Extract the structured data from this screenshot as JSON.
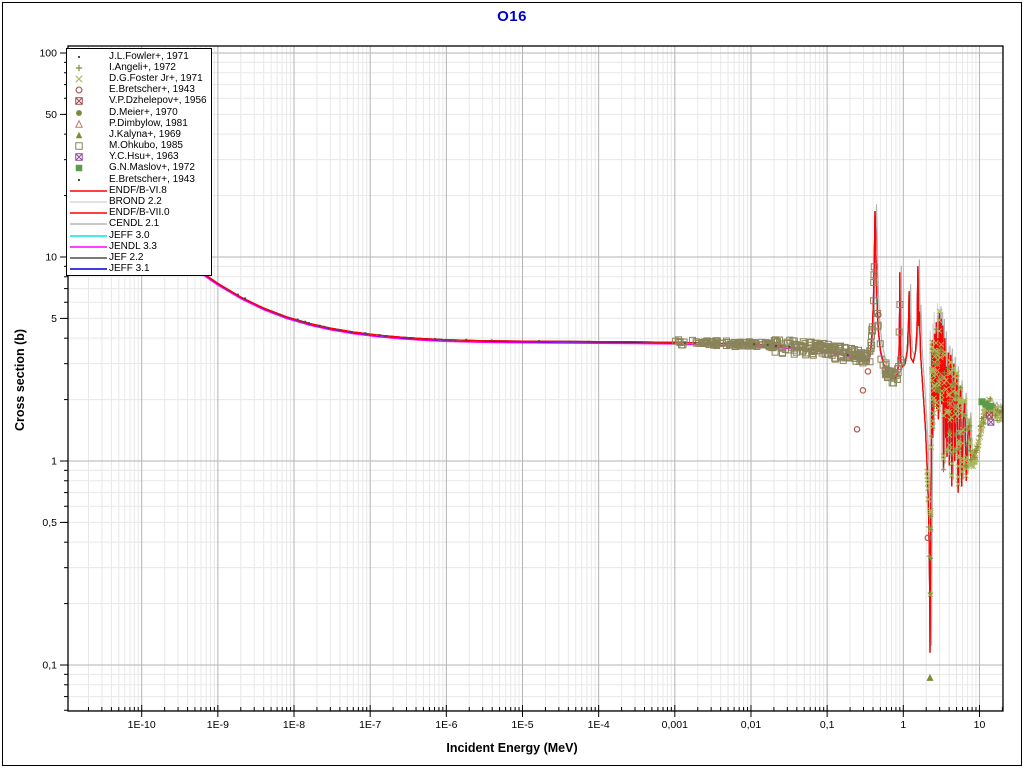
{
  "title": "O16",
  "title_color": "#0000cd",
  "axes": {
    "x_label": "Incident Energy (MeV)",
    "y_label": "Cross section (b)",
    "x_ticks": [
      {
        "value": 1e-10,
        "label": "1E-10"
      },
      {
        "value": 1e-09,
        "label": "1E-9"
      },
      {
        "value": 1e-08,
        "label": "1E-8"
      },
      {
        "value": 1e-07,
        "label": "1E-7"
      },
      {
        "value": 1e-06,
        "label": "1E-6"
      },
      {
        "value": 1e-05,
        "label": "1E-5"
      },
      {
        "value": 0.0001,
        "label": "1E-4"
      },
      {
        "value": 0.001,
        "label": "0,001"
      },
      {
        "value": 0.01,
        "label": "0,01"
      },
      {
        "value": 0.1,
        "label": "0,1"
      },
      {
        "value": 1,
        "label": "1"
      },
      {
        "value": 10,
        "label": "10"
      }
    ],
    "y_ticks": [
      {
        "value": 100,
        "label": "100"
      },
      {
        "value": 50,
        "label": "50"
      },
      {
        "value": 10,
        "label": "10"
      },
      {
        "value": 5,
        "label": "5"
      },
      {
        "value": 1,
        "label": "1"
      },
      {
        "value": 0.5,
        "label": "0,5"
      },
      {
        "value": 0.1,
        "label": "0,1"
      }
    ]
  },
  "legend": {
    "entries": [
      {
        "label": "J.L.Fowler+, 1971",
        "type": "marker",
        "marker": "dot",
        "color": "#5a4a3a"
      },
      {
        "label": "I.Angeli+, 1972",
        "type": "marker",
        "marker": "plus",
        "color": "#8a8a3d"
      },
      {
        "label": "D.G.Foster Jr+, 1971",
        "type": "marker",
        "marker": "x",
        "color": "#a8b85c"
      },
      {
        "label": "E.Bretscher+, 1943",
        "type": "marker",
        "marker": "open-circle",
        "color": "#b35950"
      },
      {
        "label": "V.P.Dzhelepov+, 1956",
        "type": "marker",
        "marker": "boxed-x",
        "color": "#9c4a4a"
      },
      {
        "label": "D.Meier+, 1970",
        "type": "marker",
        "marker": "filled-circle",
        "color": "#7d8a3d"
      },
      {
        "label": "P.Dimbylow, 1981",
        "type": "marker",
        "marker": "open-triangle",
        "color": "#c07a6b"
      },
      {
        "label": "J.Kalyna+, 1969",
        "type": "marker",
        "marker": "filled-triangle",
        "color": "#7d8a2d"
      },
      {
        "label": "M.Ohkubo, 1985",
        "type": "marker",
        "marker": "open-square",
        "color": "#8a845a"
      },
      {
        "label": "Y.C.Hsu+, 1963",
        "type": "marker",
        "marker": "boxed-x",
        "color": "#8a4a9c"
      },
      {
        "label": "G.N.Maslov+, 1972",
        "type": "marker",
        "marker": "filled-square",
        "color": "#5a9c4a"
      },
      {
        "label": "E.Bretscher+, 1943",
        "type": "marker",
        "marker": "dot",
        "color": "#5a4a3a"
      },
      {
        "label": "ENDF/B-VI.8",
        "type": "line",
        "color": "#ff0000"
      },
      {
        "label": "BROND 2.2",
        "type": "line",
        "color": "#d9d9d9"
      },
      {
        "label": "ENDF/B-VII.0",
        "type": "line",
        "color": "#ff0000"
      },
      {
        "label": "CENDL 2.1",
        "type": "line",
        "color": "#b5b5b5"
      },
      {
        "label": "JEFF 3.0",
        "type": "line",
        "color": "#00e5e5"
      },
      {
        "label": "JENDL 3.3",
        "type": "line",
        "color": "#ff00ff"
      },
      {
        "label": "JEF 2.2",
        "type": "line",
        "color": "#4d4d4d"
      },
      {
        "label": "JEFF 3.1",
        "type": "line",
        "color": "#0000cc"
      }
    ]
  },
  "chart_data": {
    "type": "line",
    "title": "O16",
    "xlabel": "Incident Energy (MeV)",
    "ylabel": "Cross section (b)",
    "xscale": "log",
    "yscale": "log",
    "xlim": [
      1.08e-11,
      20.4
    ],
    "ylim": [
      0.059,
      108
    ],
    "grid": true,
    "legend_position": "top-left",
    "base_curve": [
      [
        1.1e-11,
        38
      ],
      [
        2e-11,
        29.3
      ],
      [
        4e-11,
        21.8
      ],
      [
        8e-11,
        16.6
      ],
      [
        1.6e-10,
        12.8
      ],
      [
        3e-10,
        10.4
      ],
      [
        6e-10,
        8.47
      ],
      [
        1e-09,
        7.42
      ],
      [
        2e-09,
        6.37
      ],
      [
        4e-09,
        5.62
      ],
      [
        8e-09,
        5.09
      ],
      [
        1.6e-08,
        4.72
      ],
      [
        3e-08,
        4.48
      ],
      [
        6e-08,
        4.29
      ],
      [
        1.2e-07,
        4.15
      ],
      [
        2.5e-07,
        4.05
      ],
      [
        5e-07,
        3.98
      ],
      [
        1e-06,
        3.93
      ],
      [
        3e-06,
        3.89
      ],
      [
        1e-05,
        3.87
      ],
      [
        3e-05,
        3.86
      ],
      [
        0.0001,
        3.85
      ],
      [
        0.0003,
        3.84
      ],
      [
        0.001,
        3.82
      ],
      [
        0.003,
        3.78
      ],
      [
        0.01,
        3.73
      ],
      [
        0.02,
        3.68
      ],
      [
        0.04,
        3.6
      ],
      [
        0.07,
        3.53
      ],
      [
        0.1,
        3.47
      ],
      [
        0.15,
        3.38
      ],
      [
        0.2,
        3.3
      ],
      [
        0.25,
        3.24
      ],
      [
        0.3,
        3.19
      ],
      [
        0.34,
        3.15
      ],
      [
        0.37,
        3.35
      ],
      [
        0.39,
        4.3
      ],
      [
        0.405,
        6
      ],
      [
        0.418,
        10.5
      ],
      [
        0.425,
        16.8
      ],
      [
        0.432,
        13.5
      ],
      [
        0.442,
        8
      ],
      [
        0.455,
        5.5
      ],
      [
        0.47,
        4.4
      ],
      [
        0.5,
        3.5
      ],
      [
        0.55,
        3
      ],
      [
        0.62,
        2.7
      ],
      [
        0.7,
        2.55
      ],
      [
        0.78,
        2.55
      ],
      [
        0.84,
        2.7
      ],
      [
        0.875,
        3.2
      ],
      [
        0.895,
        5.5
      ],
      [
        0.9,
        8.4
      ],
      [
        0.908,
        4.5
      ],
      [
        0.925,
        3.1
      ],
      [
        0.98,
        2.9
      ],
      [
        1.06,
        3
      ],
      [
        1.13,
        3.5
      ],
      [
        1.175,
        5
      ],
      [
        1.19,
        6.8
      ],
      [
        1.21,
        4.6
      ],
      [
        1.26,
        3.2
      ],
      [
        1.35,
        3.05
      ],
      [
        1.44,
        3.4
      ],
      [
        1.51,
        4.3
      ],
      [
        1.555,
        9
      ],
      [
        1.585,
        4.6
      ],
      [
        1.625,
        5.4
      ],
      [
        1.68,
        3.4
      ],
      [
        1.75,
        2.7
      ],
      [
        1.85,
        2
      ],
      [
        1.95,
        1.45
      ],
      [
        2.04,
        1
      ],
      [
        2.12,
        0.66
      ],
      [
        2.18,
        0.4
      ],
      [
        2.22,
        0.22
      ],
      [
        2.243,
        0.115
      ],
      [
        2.265,
        0.22
      ],
      [
        2.29,
        0.45
      ],
      [
        2.32,
        0.9
      ],
      [
        2.35,
        1.8
      ],
      [
        2.378,
        3.3
      ],
      [
        2.398,
        3.9
      ],
      [
        2.42,
        2.2
      ],
      [
        2.44,
        1.3
      ],
      [
        2.47,
        2.3
      ],
      [
        2.5,
        3.4
      ],
      [
        2.525,
        1.8
      ],
      [
        2.56,
        2.7
      ],
      [
        2.6,
        4.2
      ],
      [
        2.63,
        2
      ],
      [
        2.67,
        3.1
      ],
      [
        2.71,
        4.8
      ],
      [
        2.75,
        1.8
      ],
      [
        2.8,
        2.7
      ],
      [
        2.85,
        4
      ],
      [
        2.89,
        1.6
      ],
      [
        2.94,
        2.9
      ],
      [
        2.99,
        5.3
      ],
      [
        3.03,
        2.2
      ],
      [
        3.09,
        3.4
      ],
      [
        3.14,
        5
      ],
      [
        3.19,
        1.9
      ],
      [
        3.25,
        3.1
      ],
      [
        3.31,
        4.6
      ],
      [
        3.37,
        0.9
      ],
      [
        3.44,
        2.4
      ],
      [
        3.52,
        4
      ],
      [
        3.59,
        1.3
      ],
      [
        3.67,
        2.9
      ],
      [
        3.75,
        1.05
      ],
      [
        3.84,
        2.2
      ],
      [
        3.92,
        3.4
      ],
      [
        4.02,
        0.95
      ],
      [
        4.12,
        2.5
      ],
      [
        4.22,
        3.3
      ],
      [
        4.33,
        0.75
      ],
      [
        4.46,
        2.1
      ],
      [
        4.6,
        3
      ],
      [
        4.75,
        1
      ],
      [
        4.9,
        1.9
      ],
      [
        5.05,
        2.7
      ],
      [
        5.25,
        0.7
      ],
      [
        5.45,
        1.7
      ],
      [
        5.65,
        2.3
      ],
      [
        5.85,
        0.75
      ],
      [
        6.1,
        1.5
      ],
      [
        6.4,
        2
      ],
      [
        6.7,
        0.8
      ],
      [
        7,
        1.3
      ],
      [
        7.35,
        1.6
      ],
      [
        7.7,
        1
      ],
      [
        8.1,
        0.98
      ],
      [
        8.6,
        1.05
      ],
      [
        9.2,
        1.1
      ],
      [
        9.8,
        1.25
      ],
      [
        10.5,
        1.45
      ],
      [
        11.3,
        1.65
      ],
      [
        12.2,
        1.8
      ],
      [
        13.2,
        1.9
      ],
      [
        14.2,
        1.83
      ],
      [
        15.2,
        1.72
      ],
      [
        16.2,
        1.8
      ],
      [
        17.2,
        1.68
      ],
      [
        18.2,
        1.76
      ],
      [
        19.2,
        1.62
      ],
      [
        20.3,
        1.78
      ]
    ],
    "evaluations": [
      {
        "name": "BROND 2.2",
        "color": "#d9d9d9",
        "dx": -2,
        "sigma_scale": 1.12,
        "e_min": 2.3,
        "e_max": 8
      },
      {
        "name": "CENDL 2.1",
        "color": "#b5b5b5",
        "dx": 1.5,
        "sigma_scale": 1.08,
        "e_min": 0.3
      },
      {
        "name": "JEF 2.2",
        "color": "#4d4d4d",
        "dx": 0,
        "sigma_scale": 1.0
      },
      {
        "name": "JEFF 3.0",
        "color": "#00e5e5",
        "dx": 0,
        "sigma_scale": 1.0
      },
      {
        "name": "JEFF 3.1",
        "color": "#0000cc",
        "dx": 0,
        "sigma_scale": 0.985,
        "e_max": 0.0013
      },
      {
        "name": "JENDL 3.3",
        "color": "#ff00ff",
        "dx": 0,
        "sigma_scale": 0.98,
        "e_max": 0.95
      },
      {
        "name": "ENDF/B-VI.8",
        "color": "#ff0000",
        "dx": 0,
        "sigma_scale": 1.0
      },
      {
        "name": "ENDF/B-VII.0",
        "color": "#ff0000",
        "dx": 0,
        "sigma_scale": 1.0
      }
    ],
    "experiments": [
      {
        "name": "M.Ohkubo, 1985",
        "marker": "open-square",
        "color": "#8a845a",
        "size": 6,
        "generate": {
          "e_min": 0.001,
          "e_max": 0.95,
          "count": 300,
          "jitter_lo": 0.013,
          "jitter_hi": 0.035,
          "bias": 0.75,
          "seed": 7
        }
      },
      {
        "name": "D.G.Foster Jr+, 1971",
        "marker": "x",
        "color": "#a8b85c",
        "size": 5,
        "generate": {
          "e_min": 2.05,
          "e_max": 20.3,
          "count": 240,
          "jitter_lo": 0.03,
          "jitter_hi": 0.03,
          "bias": 1,
          "seed": 11
        }
      },
      {
        "name": "I.Angeli+, 1972",
        "marker": "plus",
        "color": "#8a8a3d",
        "size": 5,
        "generate": {
          "e_min": 2.1,
          "e_max": 20.3,
          "count": 70,
          "jitter_lo": 0.04,
          "jitter_hi": 0.04,
          "bias": 1,
          "seed": 13
        }
      },
      {
        "name": "J.L.Fowler+, 1971",
        "marker": "dot",
        "color": "#5a4a3a",
        "size": 2,
        "generate": {
          "e_min": 6e-10,
          "e_max": 0.0002,
          "count": 26,
          "jitter_lo": 0.004,
          "jitter_hi": 0.004,
          "bias": 1,
          "seed": 17
        }
      },
      {
        "name": "E.Bretscher+, 1943",
        "marker": "dot",
        "color": "#5a4a3a",
        "size": 2,
        "generate": {
          "e_min": 0.001,
          "e_max": 0.2,
          "count": 8,
          "jitter_lo": 0.003,
          "jitter_hi": 0.003,
          "bias": 1,
          "seed": 19
        }
      },
      {
        "name": "E.Bretscher+, 1943",
        "marker": "open-circle",
        "color": "#b35950",
        "size": 6,
        "points": [
          [
            0.343,
            2.75
          ],
          [
            0.295,
            2.22
          ],
          [
            0.247,
            1.43
          ],
          [
            0.47,
            5.2
          ],
          [
            2.1,
            0.42
          ]
        ]
      },
      {
        "name": "P.Dimbylow, 1981",
        "marker": "open-triangle",
        "color": "#c07a6b",
        "size": 6,
        "points": [
          [
            3.1,
            2.6
          ],
          [
            4.4,
            1.9
          ]
        ]
      },
      {
        "name": "J.Kalyna+, 1969",
        "marker": "filled-triangle",
        "color": "#7d8a2d",
        "size": 7,
        "points": [
          [
            2.24,
            0.087
          ],
          [
            2.9,
            2.25
          ]
        ]
      },
      {
        "name": "D.Meier+, 1970",
        "marker": "filled-circle",
        "color": "#7d8a3d",
        "size": 5,
        "points": [
          [
            14.5,
            1.88
          ]
        ]
      },
      {
        "name": "V.P.Dzhelepov+, 1956",
        "marker": "boxed-x",
        "color": "#9c4a4a",
        "size": 6,
        "points": [
          [
            13.5,
            1.68
          ]
        ]
      },
      {
        "name": "Y.C.Hsu+, 1963",
        "marker": "boxed-x",
        "color": "#8a4a9c",
        "size": 6,
        "points": [
          [
            14.1,
            1.55
          ]
        ]
      },
      {
        "name": "G.N.Maslov+, 1972",
        "marker": "filled-square",
        "color": "#5a9c4a",
        "size": 7,
        "points": [
          [
            10.8,
            1.95
          ],
          [
            12.2,
            1.9
          ],
          [
            13.6,
            1.85
          ]
        ]
      }
    ]
  },
  "style_colors": {
    "grid_major": "#b3b3b3",
    "grid_minor": "#e8e8e8",
    "plot_border": "#000000",
    "tick": "#000000"
  }
}
